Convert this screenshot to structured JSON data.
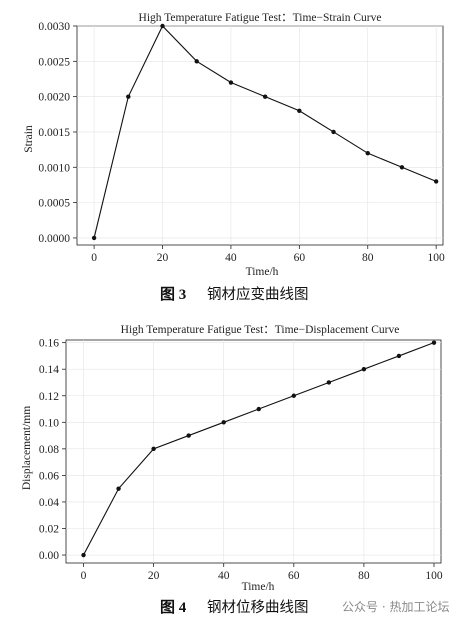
{
  "chart_data": [
    {
      "type": "line",
      "title": "High Temperature Fatigue Test：Time−Strain Curve",
      "xlabel": "Time/h",
      "ylabel": "Strain",
      "xlim": [
        -5,
        102
      ],
      "ylim": [
        -0.0001,
        0.003
      ],
      "xticks": [
        0,
        20,
        40,
        60,
        80,
        100
      ],
      "yticks": [
        0.0,
        0.0005,
        0.001,
        0.0015,
        0.002,
        0.0025,
        0.003
      ],
      "ytick_labels": [
        "0.0000",
        "0.0005",
        "0.0010",
        "0.0015",
        "0.0020",
        "0.0025",
        "0.0030"
      ],
      "grid": true,
      "series": [
        {
          "x": [
            0,
            10,
            20,
            30,
            40,
            50,
            60,
            70,
            80,
            90,
            100
          ],
          "values": [
            0.0,
            0.002,
            0.003,
            0.0025,
            0.0022,
            0.002,
            0.0018,
            0.0015,
            0.0012,
            0.001,
            0.0008
          ]
        }
      ],
      "caption_num": "图 3",
      "caption_text": "钢材应变曲线图"
    },
    {
      "type": "line",
      "title": "High Temperature Fatigue Test：Time−Displacement Curve",
      "xlabel": "Time/h",
      "ylabel": "Displacement/mm",
      "xlim": [
        -5,
        102
      ],
      "ylim": [
        -0.006,
        0.162
      ],
      "xticks": [
        0,
        20,
        40,
        60,
        80,
        100
      ],
      "yticks": [
        0.0,
        0.02,
        0.04,
        0.06,
        0.08,
        0.1,
        0.12,
        0.14,
        0.16
      ],
      "ytick_labels": [
        "0.00",
        "0.02",
        "0.04",
        "0.06",
        "0.08",
        "0.10",
        "0.12",
        "0.14",
        "0.16"
      ],
      "grid": true,
      "series": [
        {
          "x": [
            0,
            10,
            20,
            30,
            40,
            50,
            60,
            70,
            80,
            90,
            100
          ],
          "values": [
            0.0,
            0.05,
            0.08,
            0.09,
            0.1,
            0.11,
            0.12,
            0.13,
            0.14,
            0.15,
            0.16
          ]
        }
      ],
      "caption_num": "图 4",
      "caption_text": "钢材位移曲线图"
    }
  ],
  "watermark": "公众号 · 热加工论坛"
}
